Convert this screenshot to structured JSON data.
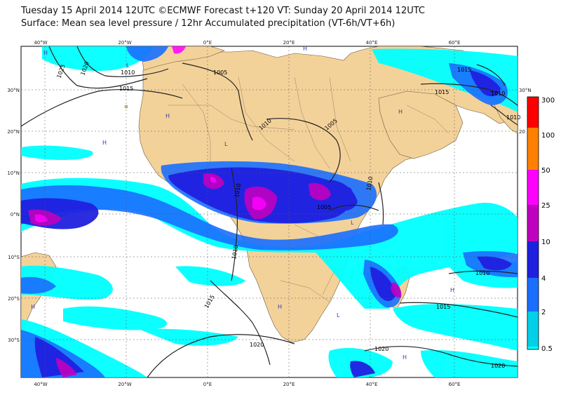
{
  "header": {
    "title_line1": "Tuesday 15 April 2014 12UTC ©ECMWF Forecast t+120 VT: Sunday 20 April 2014 12UTC",
    "title_line2": "Surface: Mean sea level pressure / 12hr Accumulated precipitation (VT-6h/VT+6h)"
  },
  "axes": {
    "lon_labels": [
      "40°W",
      "20°W",
      "0°E",
      "20°E",
      "40°E",
      "60°E"
    ],
    "lat_labels": [
      "30°N",
      "20°N",
      "10°N",
      "0°N",
      "10°S",
      "20°S",
      "30°S"
    ],
    "right_lat_labels": [
      "30°N",
      "20"
    ]
  },
  "colorbar": {
    "labels": [
      "300",
      "100",
      "50",
      "25",
      "10",
      "4",
      "2",
      "0.5"
    ],
    "colors": [
      "#ff0000",
      "#ff8000",
      "#ff00ff",
      "#c000c0",
      "#2020e0",
      "#1a6fff",
      "#00d0e8",
      "#00ffff"
    ]
  },
  "isobars": [
    "1025",
    "1020",
    "1010",
    "1015",
    "1005",
    "1010",
    "1005",
    "1015",
    "1010",
    "1010",
    "1010",
    "1005",
    "1010",
    "1010",
    "1015",
    "1015",
    "1020",
    "1020",
    "1020",
    "1015",
    "1010"
  ],
  "pressure_centers": [
    "H",
    "L",
    "H",
    "H",
    "L",
    "H",
    "H",
    "H",
    "L",
    "H",
    "L",
    "H",
    "H"
  ],
  "colors": {
    "land": "#f3d29a",
    "ocean": "#ffffff"
  }
}
